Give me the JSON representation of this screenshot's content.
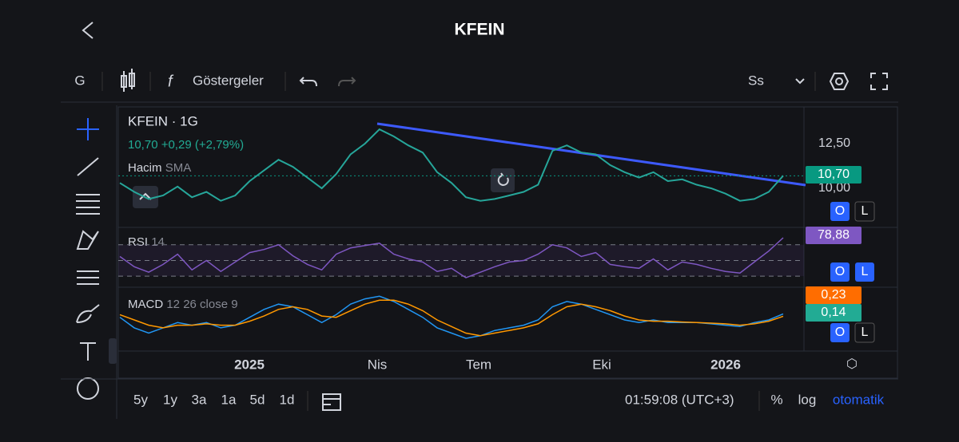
{
  "header": {
    "title": "KFEIN"
  },
  "toolbar": {
    "interval": "G",
    "indicators": "Göstergeler",
    "session": "Ss"
  },
  "legend": {
    "symbol": "KFEIN · 1G",
    "quote": "10,70 +0,29 (+2,79%)",
    "volume": "Hacim",
    "volume_sma": "SMA",
    "rsi": "RSI",
    "rsi_length": "14",
    "macd": "MACD",
    "macd_params": "12 26 close 9"
  },
  "price_scale": {
    "ticks": [
      {
        "value": 12.5,
        "label": "12,50"
      },
      {
        "value": 10,
        "label": "10,00"
      }
    ]
  },
  "badges": {
    "price": "10,70",
    "rsi": "78,88",
    "macd": "0,23",
    "signal": "0,14"
  },
  "pane_buttons": [
    "O",
    "L"
  ],
  "time_axis": [
    "2025",
    "Nis",
    "Tem",
    "Eki",
    "2026"
  ],
  "ranges": [
    "5y",
    "1y",
    "3a",
    "1a",
    "5d",
    "1d"
  ],
  "footer": {
    "clock": "01:59:08 (UTC+3)",
    "percent": "%",
    "log": "log",
    "scale_mode": "otomatik"
  },
  "series": {
    "price": [
      10.3,
      9.8,
      9.4,
      9.6,
      10.1,
      9.5,
      9.8,
      9.3,
      9.6,
      10.4,
      11.0,
      11.6,
      11.2,
      10.6,
      10.0,
      10.8,
      11.9,
      12.5,
      13.3,
      12.9,
      12.4,
      12.0,
      10.9,
      10.3,
      9.5,
      9.3,
      9.4,
      9.6,
      9.8,
      10.2,
      12.1,
      12.4,
      12.0,
      11.9,
      11.3,
      10.9,
      10.6,
      10.9,
      10.4,
      10.5,
      10.2,
      10.0,
      9.7,
      9.3,
      9.4,
      9.8,
      10.7
    ],
    "rsi": {
      "ylim": [
        20,
        85
      ],
      "levels": [
        70,
        50,
        30
      ],
      "values": [
        55,
        42,
        35,
        45,
        58,
        38,
        50,
        36,
        48,
        60,
        64,
        70,
        56,
        45,
        38,
        58,
        66,
        69,
        72,
        58,
        52,
        48,
        36,
        40,
        28,
        35,
        42,
        48,
        50,
        58,
        70,
        66,
        55,
        60,
        45,
        42,
        40,
        52,
        38,
        48,
        45,
        40,
        36,
        34,
        48,
        62,
        78.88
      ]
    },
    "macd": {
      "ylim": [
        -1,
        1
      ],
      "macd": [
        0.1,
        -0.3,
        -0.5,
        -0.3,
        -0.1,
        -0.2,
        -0.1,
        -0.3,
        -0.2,
        0.1,
        0.4,
        0.6,
        0.5,
        0.2,
        -0.1,
        0.2,
        0.6,
        0.8,
        0.9,
        0.7,
        0.4,
        0.1,
        -0.3,
        -0.5,
        -0.7,
        -0.6,
        -0.4,
        -0.3,
        -0.2,
        0.0,
        0.5,
        0.7,
        0.6,
        0.4,
        0.2,
        0.0,
        -0.1,
        0.0,
        -0.1,
        -0.1,
        -0.1,
        -0.15,
        -0.2,
        -0.25,
        -0.1,
        0.0,
        0.23
      ],
      "signal": [
        0.2,
        0.0,
        -0.2,
        -0.3,
        -0.2,
        -0.2,
        -0.15,
        -0.2,
        -0.2,
        -0.05,
        0.15,
        0.4,
        0.5,
        0.4,
        0.15,
        0.1,
        0.35,
        0.6,
        0.75,
        0.75,
        0.6,
        0.35,
        0.0,
        -0.25,
        -0.5,
        -0.6,
        -0.5,
        -0.4,
        -0.3,
        -0.15,
        0.2,
        0.5,
        0.6,
        0.5,
        0.35,
        0.15,
        0.0,
        -0.05,
        -0.05,
        -0.08,
        -0.1,
        -0.12,
        -0.15,
        -0.2,
        -0.15,
        -0.05,
        0.14
      ]
    }
  }
}
